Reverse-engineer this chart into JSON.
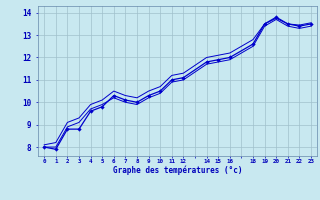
{
  "hours": [
    0,
    1,
    2,
    3,
    4,
    5,
    6,
    7,
    8,
    9,
    10,
    11,
    12,
    14,
    15,
    16,
    18,
    19,
    20,
    21,
    22,
    23
  ],
  "line1": [
    8.0,
    7.9,
    8.8,
    8.8,
    9.6,
    9.8,
    10.3,
    10.1,
    10.0,
    10.3,
    10.5,
    11.0,
    11.1,
    11.8,
    11.9,
    12.0,
    12.6,
    13.5,
    13.8,
    13.5,
    13.4,
    13.5
  ],
  "line2": [
    8.0,
    8.0,
    8.9,
    9.1,
    9.7,
    9.9,
    10.2,
    10.0,
    9.9,
    10.2,
    10.4,
    10.9,
    11.0,
    11.7,
    11.8,
    11.9,
    12.5,
    13.4,
    13.7,
    13.4,
    13.3,
    13.4
  ],
  "line3": [
    8.1,
    8.2,
    9.1,
    9.3,
    9.9,
    10.1,
    10.5,
    10.3,
    10.2,
    10.5,
    10.7,
    11.2,
    11.3,
    12.0,
    12.1,
    12.2,
    12.8,
    13.5,
    13.75,
    13.5,
    13.45,
    13.55
  ],
  "line_color": "#0000cc",
  "bg_color": "#c8e8f0",
  "grid_color": "#a0c0cc",
  "axis_label_color": "#0000bb",
  "xlabel": "Graphe des températures (°c)",
  "xlim": [
    -0.5,
    23.5
  ],
  "ylim": [
    7.6,
    14.3
  ],
  "yticks": [
    8,
    9,
    10,
    11,
    12,
    13,
    14
  ],
  "xtick_positions": [
    0,
    1,
    2,
    3,
    4,
    5,
    6,
    7,
    8,
    9,
    10,
    11,
    12,
    13,
    14,
    15,
    16,
    17,
    18,
    19,
    20,
    21,
    22,
    23
  ],
  "xtick_labels": [
    "0",
    "1",
    "2",
    "3",
    "4",
    "5",
    "6",
    "7",
    "8",
    "9",
    "10",
    "11",
    "12",
    "",
    "14",
    "15",
    "16",
    "",
    "18",
    "19",
    "20",
    "21",
    "22",
    "23"
  ]
}
